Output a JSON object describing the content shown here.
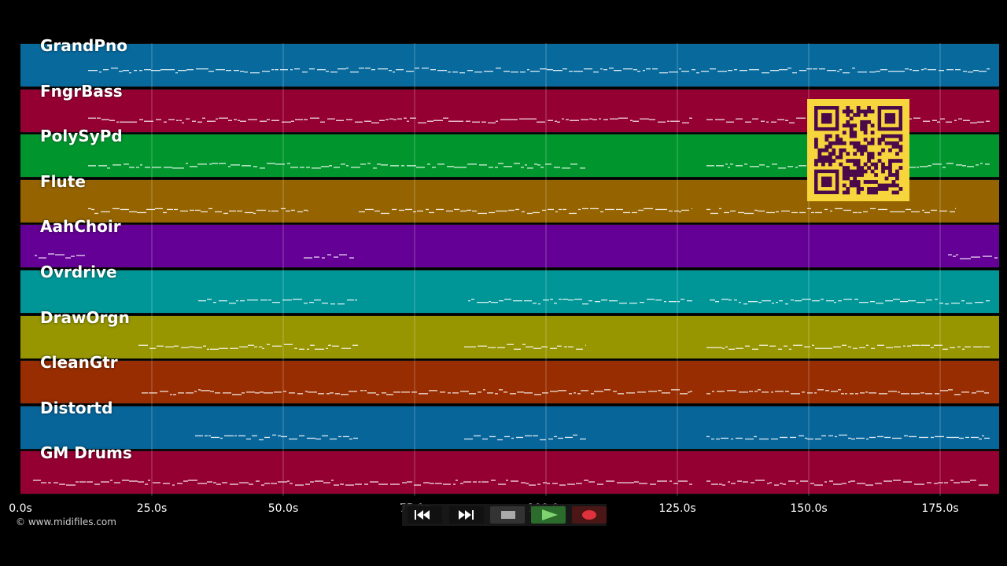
{
  "tracks": [
    {
      "name": "GrandPno",
      "color": "#07699c"
    },
    {
      "name": "FngrBass",
      "color": "#950033"
    },
    {
      "name": "PolySyPd",
      "color": "#00962d"
    },
    {
      "name": "Flute",
      "color": "#956400"
    },
    {
      "name": "AahChoir",
      "color": "#650096"
    },
    {
      "name": "Ovrdrive",
      "color": "#009697"
    },
    {
      "name": "DrawOrgn",
      "color": "#979600"
    },
    {
      "name": "CleanGtr",
      "color": "#972d00"
    },
    {
      "name": "Distortd",
      "color": "#07659a"
    },
    {
      "name": "GM Drums",
      "color": "#950033"
    }
  ],
  "timeline": {
    "ticks": [
      "0.0s",
      "25.0s",
      "50.0s",
      "75.0s",
      "100.0s",
      "125.0s",
      "150.0s",
      "175.0s"
    ],
    "copyright": "© www.midifiles.com"
  },
  "transport": {
    "buttons": [
      {
        "name": "rewind-button",
        "icon": "rewind-icon"
      },
      {
        "name": "fast-forward-button",
        "icon": "fast-forward-icon"
      },
      {
        "name": "stop-button",
        "icon": "stop-icon"
      },
      {
        "name": "play-button",
        "icon": "play-icon"
      },
      {
        "name": "record-button",
        "icon": "record-icon"
      }
    ]
  },
  "qr_code": {
    "name": "qr-code",
    "color": "#f7d53c",
    "module_color": "#4a0a4a"
  }
}
